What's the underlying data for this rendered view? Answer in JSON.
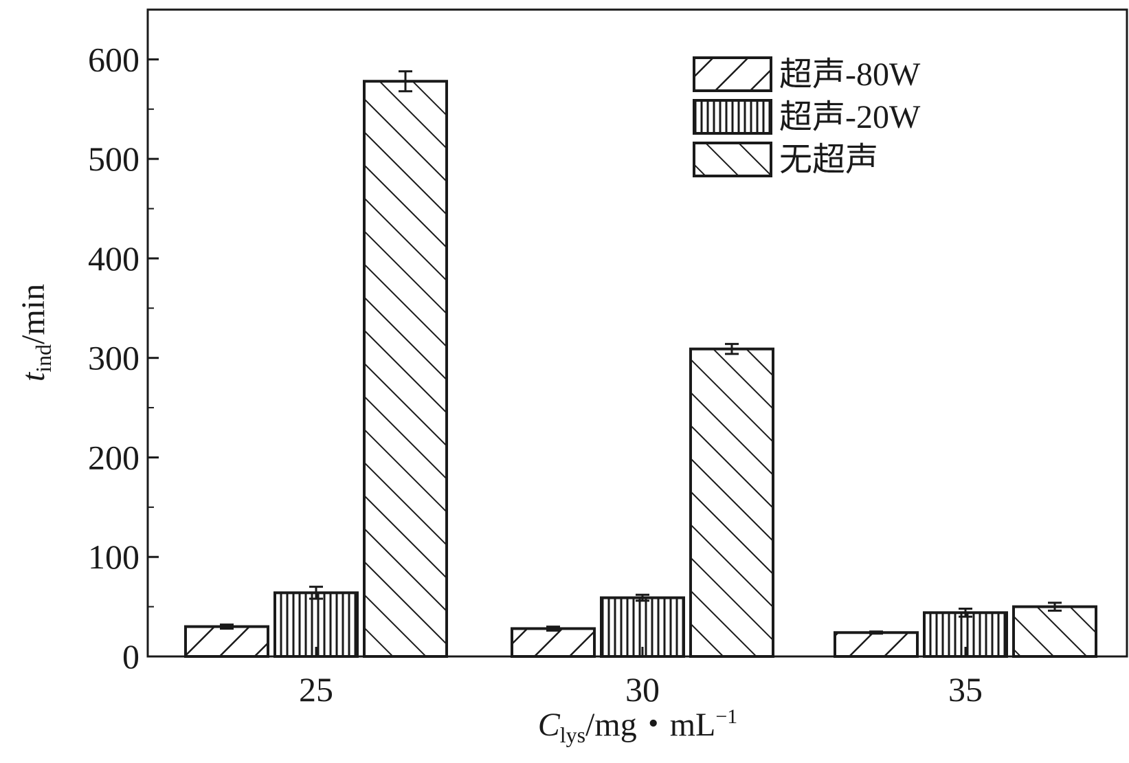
{
  "chart_data": {
    "type": "bar",
    "xlabel": {
      "main": "C",
      "sub": "lys",
      "unit": "/mg・mL",
      "sup": "−1"
    },
    "ylabel": {
      "main": "t",
      "sub": "ind",
      "unit": "/min"
    },
    "categories": [
      "25",
      "30",
      "35"
    ],
    "ylim": [
      0,
      650
    ],
    "yticks": [
      "0",
      "100",
      "200",
      "300",
      "400",
      "500",
      "600"
    ],
    "grid": false,
    "legend_position": "top-right",
    "series": [
      {
        "name": "超声-80W",
        "pattern": "diagonal-up",
        "values": [
          30,
          28,
          24
        ],
        "errors": [
          2,
          2,
          1
        ]
      },
      {
        "name": "超声-20W",
        "pattern": "vertical",
        "values": [
          64,
          59,
          44
        ],
        "errors": [
          6,
          3,
          4
        ]
      },
      {
        "name": "无超声",
        "pattern": "diagonal-down",
        "values": [
          578,
          309,
          50
        ],
        "errors": [
          10,
          5,
          4
        ]
      }
    ]
  }
}
